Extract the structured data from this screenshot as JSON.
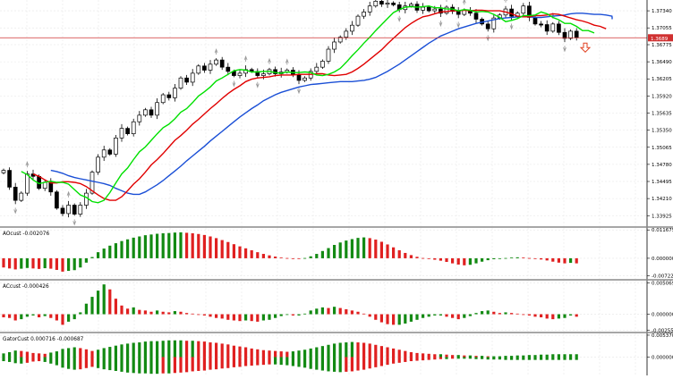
{
  "colors": {
    "background": "#ffffff",
    "grid": "#e6e6e6",
    "axis": "#000000",
    "bull_candle": "#ffffff",
    "bear_candle": "#000000",
    "green_line": "#00e000",
    "red_line": "#e00000",
    "blue_line": "#1a4fd6",
    "hist_up": "#138a13",
    "hist_down": "#e02020",
    "price_line": "#d03030"
  },
  "icons": [
    "arrow-down-icon",
    "fractal-marker-icon"
  ],
  "chart_data": [
    {
      "type": "candlestick",
      "name": "main",
      "ylim": [
        1.3375,
        1.3752
      ],
      "price_ticks": [
        "1.37340",
        "1.37055",
        "1.36775",
        "1.36490",
        "1.36205",
        "1.35920",
        "1.35635",
        "1.35350",
        "1.35065",
        "1.34780",
        "1.34495",
        "1.34210",
        "1.33925"
      ],
      "current_price": 1.3689,
      "current_price_label": "1.3689",
      "signal_marker": "sell-arrow",
      "close": [
        1.3468,
        1.344,
        1.3418,
        1.343,
        1.3462,
        1.3458,
        1.3438,
        1.3448,
        1.3432,
        1.3405,
        1.3396,
        1.341,
        1.3395,
        1.341,
        1.343,
        1.3465,
        1.349,
        1.3502,
        1.3495,
        1.3522,
        1.3538,
        1.3529,
        1.3549,
        1.356,
        1.3569,
        1.356,
        1.3581,
        1.3594,
        1.3589,
        1.3605,
        1.3622,
        1.3615,
        1.363,
        1.3642,
        1.3635,
        1.3645,
        1.3652,
        1.364,
        1.3633,
        1.3626,
        1.363,
        1.3636,
        1.3633,
        1.3626,
        1.3629,
        1.3636,
        1.3629,
        1.3632,
        1.3635,
        1.3628,
        1.3618,
        1.3622,
        1.3633,
        1.364,
        1.365,
        1.367,
        1.3682,
        1.369,
        1.37,
        1.371,
        1.3725,
        1.3732,
        1.3742,
        1.375,
        1.3745,
        1.3747,
        1.3744,
        1.3736,
        1.3742,
        1.3745,
        1.3735,
        1.374,
        1.3734,
        1.3737,
        1.373,
        1.374,
        1.3733,
        1.3728,
        1.3735,
        1.373,
        1.372,
        1.3712,
        1.3704,
        1.3722,
        1.3727,
        1.3737,
        1.3725,
        1.373,
        1.3742,
        1.3723,
        1.3712,
        1.3711,
        1.37,
        1.3712,
        1.3698,
        1.3688,
        1.37,
        1.3689
      ],
      "series": [
        {
          "name": "green",
          "values": [
            1.3466,
            1.3461,
            1.3452,
            1.3446,
            1.3448,
            1.345,
            1.3448,
            1.3448,
            1.3445,
            1.3436,
            1.3427,
            1.3423,
            1.3416,
            1.3414,
            1.3418,
            1.3431,
            1.3447,
            1.3462,
            1.3472,
            1.3486,
            1.3499,
            1.3507,
            1.3518,
            1.3529,
            1.3539,
            1.3545,
            1.3554,
            1.3565,
            1.3571,
            1.3581,
            1.3592,
            1.3599,
            1.3607,
            1.3617,
            1.3622,
            1.3628,
            1.3634,
            1.3636,
            1.3635,
            1.3632,
            1.3632,
            1.3633,
            1.3633,
            1.3631,
            1.363,
            1.3632,
            1.3631,
            1.3631,
            1.3632,
            1.3631,
            1.3627,
            1.3626,
            1.3628,
            1.3632,
            1.3638,
            1.3648,
            1.3659,
            1.3669,
            1.368,
            1.369,
            1.3701,
            1.3711,
            1.3721,
            1.3731,
            1.3736,
            1.374,
            1.3741,
            1.374,
            1.3741,
            1.3742,
            1.3739,
            1.3739,
            1.3737,
            1.3737,
            1.3734,
            1.3736,
            1.3735,
            1.3732,
            1.3733,
            1.3732,
            1.3728,
            1.3723,
            1.3716,
            1.3718,
            1.3721,
            1.3726,
            1.3726,
            1.3727,
            1.3732,
            1.3729,
            1.3723,
            1.3719,
            1.3713,
            1.3713,
            1.3708,
            1.3701,
            1.3701,
            1.3697
          ]
        },
        {
          "name": "red",
          "values": [
            1.3462,
            1.3458,
            1.3452,
            1.3447,
            1.3447,
            1.3449,
            1.3449,
            1.3448,
            1.3446,
            1.3441,
            1.3434,
            1.3427,
            1.3421,
            1.3418,
            1.3418,
            1.3424,
            1.3434,
            1.3445,
            1.3454,
            1.3465,
            1.3477,
            1.3486,
            1.3496,
            1.3507,
            1.3518,
            1.3526,
            1.3535,
            1.3545,
            1.3553,
            1.3562,
            1.3571,
            1.3579,
            1.3588,
            1.3596,
            1.3603,
            1.3609,
            1.3616,
            1.362,
            1.3622,
            1.3623,
            1.3624,
            1.3626,
            1.3627,
            1.3627,
            1.3627,
            1.3628,
            1.3628,
            1.3628,
            1.3629,
            1.3629,
            1.3627,
            1.3626,
            1.3627,
            1.3628,
            1.3632,
            1.3638,
            1.3645,
            1.3653,
            1.3661,
            1.3669,
            1.3679,
            1.3688,
            1.3697,
            1.3706,
            1.3713,
            1.3719,
            1.3724,
            1.3726,
            1.3729,
            1.3732,
            1.3733,
            1.3734,
            1.3734,
            1.3735,
            1.3734,
            1.3735,
            1.3735,
            1.3734,
            1.3734,
            1.3734,
            1.3732,
            1.3729,
            1.3725,
            1.3724,
            1.3724,
            1.3726,
            1.3726,
            1.3727,
            1.3729,
            1.3728,
            1.3725,
            1.3722,
            1.3719,
            1.3717,
            1.3714,
            1.371,
            1.3708,
            1.3704
          ]
        },
        {
          "name": "blue",
          "values": [
            1.3468,
            1.3466,
            1.3463,
            1.3459,
            1.3456,
            1.3454,
            1.3452,
            1.345,
            1.3448,
            1.3446,
            1.3443,
            1.3438,
            1.3434,
            1.343,
            1.3428,
            1.3428,
            1.3432,
            1.3438,
            1.3444,
            1.3451,
            1.3459,
            1.3467,
            1.3475,
            1.3484,
            1.3492,
            1.35,
            1.3508,
            1.3517,
            1.3525,
            1.3533,
            1.3541,
            1.3549,
            1.3557,
            1.3564,
            1.3571,
            1.3577,
            1.3584,
            1.3589,
            1.3594,
            1.3598,
            1.3601,
            1.3604,
            1.3607,
            1.3609,
            1.3611,
            1.3612,
            1.3613,
            1.3614,
            1.3615,
            1.3616,
            1.3616,
            1.3616,
            1.3617,
            1.3618,
            1.362,
            1.3623,
            1.3628,
            1.3633,
            1.3639,
            1.3645,
            1.3652,
            1.3659,
            1.3666,
            1.3673,
            1.368,
            1.3686,
            1.3692,
            1.3696,
            1.37,
            1.3704,
            1.3707,
            1.371,
            1.3713,
            1.3715,
            1.3717,
            1.3719,
            1.3721,
            1.3722,
            1.3723,
            1.3724,
            1.3724,
            1.3724,
            1.3723,
            1.3723,
            1.3724,
            1.3725,
            1.3726,
            1.3727,
            1.3729,
            1.373,
            1.373,
            1.3729,
            1.3728,
            1.3728,
            1.3727,
            1.3725,
            1.3723,
            1.372
          ]
        }
      ]
    },
    {
      "type": "bar",
      "name": "AOcust",
      "header": "AOcust -0.002076",
      "ticks": [
        "0.011675",
        "0.000000",
        "-0.007223"
      ],
      "ylim": [
        -0.0085,
        0.0125
      ],
      "values": [
        -0.0038,
        -0.0042,
        -0.0046,
        -0.0043,
        -0.004,
        -0.0042,
        -0.0044,
        -0.0041,
        -0.0043,
        -0.0048,
        -0.0055,
        -0.0052,
        -0.0049,
        -0.0038,
        -0.0018,
        0.0005,
        0.0025,
        0.004,
        0.0052,
        0.0062,
        0.0071,
        0.0078,
        0.0085,
        0.009,
        0.0095,
        0.0098,
        0.0101,
        0.0103,
        0.0104,
        0.0106,
        0.0107,
        0.0105,
        0.0103,
        0.01,
        0.0096,
        0.009,
        0.0083,
        0.0075,
        0.0067,
        0.0058,
        0.0049,
        0.0041,
        0.0033,
        0.0025,
        0.0018,
        0.0012,
        0.0007,
        0.0003,
        0.0001,
        -0.0001,
        -0.0002,
        0.0001,
        0.0008,
        0.0018,
        0.003,
        0.0042,
        0.0055,
        0.0065,
        0.0073,
        0.0079,
        0.0084,
        0.0086,
        0.0083,
        0.0077,
        0.0068,
        0.0057,
        0.0045,
        0.0033,
        0.0022,
        0.0013,
        0.0006,
        0.0001,
        -0.0003,
        -0.0006,
        -0.001,
        -0.0015,
        -0.0021,
        -0.0026,
        -0.0029,
        -0.0027,
        -0.0021,
        -0.0014,
        -0.0008,
        -0.0004,
        -0.0002,
        0.0001,
        0.0003,
        0.0004,
        0.0003,
        0.0001,
        -0.0002,
        -0.0005,
        -0.0009,
        -0.0014,
        -0.0018,
        -0.0021,
        -0.0019,
        -0.0021
      ]
    },
    {
      "type": "bar",
      "name": "ACcust",
      "header": "ACcust -0.000426",
      "ticks": [
        "0.0050691",
        "0.000000",
        "-0.0025518"
      ],
      "ylim": [
        -0.0028,
        0.0054
      ],
      "values": [
        -0.0005,
        -0.0006,
        -0.001,
        -0.0008,
        -0.0004,
        -0.0002,
        -0.0005,
        -0.0003,
        -0.0006,
        -0.001,
        -0.0017,
        -0.0012,
        -0.0008,
        0.0003,
        0.0017,
        0.0028,
        0.0038,
        0.0048,
        0.004,
        0.0025,
        0.0014,
        0.0009,
        0.0011,
        0.0007,
        0.0006,
        0.0004,
        0.0006,
        0.0004,
        0.0003,
        0.0005,
        0.0004,
        0.0002,
        0.0001,
        -0.0001,
        -0.0002,
        -0.0004,
        -0.0006,
        -0.0007,
        -0.0009,
        -0.001,
        -0.0011,
        -0.001,
        -0.0011,
        -0.0012,
        -0.001,
        -0.0009,
        -0.0006,
        -0.0003,
        -0.0001,
        -0.0002,
        -0.0002,
        0.0001,
        0.0006,
        0.0009,
        0.0011,
        0.001,
        0.0012,
        0.001,
        0.0008,
        0.0006,
        0.0004,
        0.0001,
        -0.0004,
        -0.0009,
        -0.0013,
        -0.0016,
        -0.0017,
        -0.0017,
        -0.0015,
        -0.0012,
        -0.0009,
        -0.0006,
        -0.0004,
        -0.0002,
        -0.0002,
        -0.0004,
        -0.0006,
        -0.0008,
        -0.0006,
        -0.0003,
        0.0002,
        0.0005,
        0.0006,
        0.0004,
        0.0002,
        0.0003,
        0.0002,
        0.0001,
        -0.0001,
        -0.0002,
        -0.0004,
        -0.0005,
        -0.0007,
        -0.0008,
        -0.0007,
        -0.0006,
        -0.0002,
        -0.0004
      ]
    },
    {
      "type": "bar",
      "name": "GatorCust",
      "header": "GatorCust 0.000716 -0.000687",
      "ticks": [
        "0.005370",
        "0.000000"
      ],
      "ylim": [
        -0.0045,
        0.0058
      ],
      "upper": [
        0.0009,
        0.0012,
        0.0016,
        0.0015,
        0.0013,
        0.001,
        0.0009,
        0.0008,
        0.0011,
        0.0014,
        0.002,
        0.0022,
        0.0024,
        0.0022,
        0.0019,
        0.0015,
        0.0018,
        0.0022,
        0.0025,
        0.0028,
        0.0031,
        0.0033,
        0.0035,
        0.0036,
        0.0038,
        0.0039,
        0.0039,
        0.004,
        0.0041,
        0.0041,
        0.0041,
        0.004,
        0.004,
        0.0039,
        0.0038,
        0.0036,
        0.0035,
        0.0033,
        0.0031,
        0.0028,
        0.0026,
        0.0024,
        0.0021,
        0.0019,
        0.0017,
        0.0016,
        0.0015,
        0.0014,
        0.0013,
        0.0014,
        0.0016,
        0.0018,
        0.0021,
        0.0024,
        0.0027,
        0.003,
        0.0033,
        0.0035,
        0.0036,
        0.0037,
        0.0036,
        0.0035,
        0.0033,
        0.003,
        0.0027,
        0.0024,
        0.0021,
        0.0018,
        0.0015,
        0.0012,
        0.001,
        0.0009,
        0.0008,
        0.0007,
        0.0007,
        0.0006,
        0.0005,
        0.0005,
        0.0004,
        0.0004,
        0.0003,
        0.0003,
        0.0002,
        0.0002,
        0.0002,
        0.0003,
        0.0003,
        0.0004,
        0.0004,
        0.0005,
        0.0005,
        0.0006,
        0.0006,
        0.0007,
        0.0007,
        0.0007,
        0.0007,
        0.0007
      ],
      "lower": [
        -0.001,
        -0.0012,
        -0.0015,
        -0.0016,
        -0.0014,
        -0.0011,
        -0.001,
        -0.0012,
        -0.0016,
        -0.002,
        -0.0026,
        -0.0029,
        -0.0031,
        -0.003,
        -0.0027,
        -0.0024,
        -0.0027,
        -0.003,
        -0.0032,
        -0.0034,
        -0.0036,
        -0.0038,
        -0.0039,
        -0.004,
        -0.004,
        -0.0041,
        -0.0041,
        -0.004,
        -0.004,
        -0.0039,
        -0.0038,
        -0.0037,
        -0.0035,
        -0.0034,
        -0.0033,
        -0.0031,
        -0.003,
        -0.0028,
        -0.0027,
        -0.0025,
        -0.0024,
        -0.0022,
        -0.0021,
        -0.002,
        -0.0019,
        -0.0018,
        -0.0018,
        -0.0019,
        -0.002,
        -0.0022,
        -0.0024,
        -0.0026,
        -0.0029,
        -0.0031,
        -0.0033,
        -0.0035,
        -0.0036,
        -0.0037,
        -0.0036,
        -0.0035,
        -0.0033,
        -0.0031,
        -0.0028,
        -0.0025,
        -0.0022,
        -0.0019,
        -0.0016,
        -0.0014,
        -0.0012,
        -0.001,
        -0.0009,
        -0.0008,
        -0.0007,
        -0.0006,
        -0.0005,
        -0.0005,
        -0.0004,
        -0.0004,
        -0.0004,
        -0.0004,
        -0.0005,
        -0.0005,
        -0.0006,
        -0.0006,
        -0.0006,
        -0.0007,
        -0.0007,
        -0.0007,
        -0.0007,
        -0.0007,
        -0.0007,
        -0.0007,
        -0.0007,
        -0.0007,
        -0.0007,
        -0.0007,
        -0.0007,
        -0.0007
      ]
    }
  ]
}
